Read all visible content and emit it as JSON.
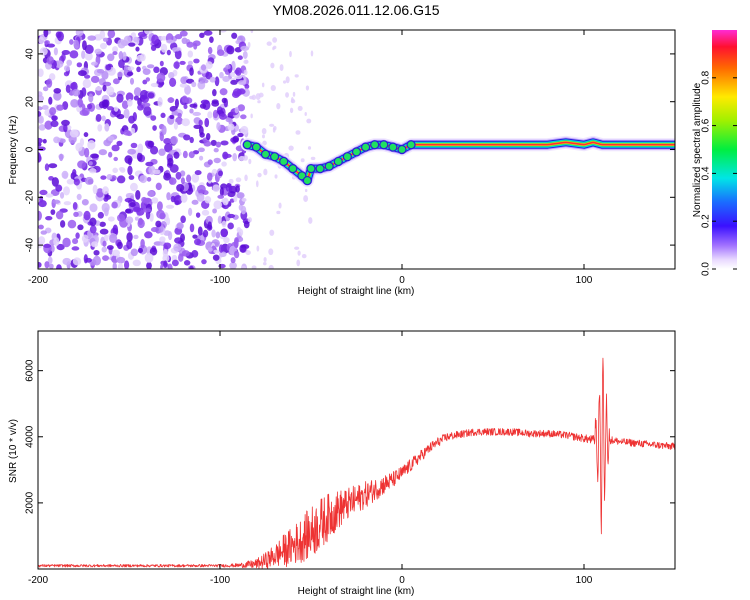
{
  "title": "YM08.2026.011.12.06.G15",
  "colors": {
    "trace": "#ee3333",
    "axis": "#000000",
    "scatter": "#6a1be0",
    "track_core": "#ff2a3a"
  },
  "chart_data": [
    {
      "id": "spectrogram",
      "type": "heatmap",
      "xlabel": "Height of straight line (km)",
      "ylabel": "Frequency (Hz)",
      "xlim": [
        -200,
        150
      ],
      "ylim": [
        -50,
        50
      ],
      "xticks": [
        -200,
        -100,
        0,
        100
      ],
      "yticks": [
        -40,
        -20,
        0,
        20,
        40
      ],
      "track": [
        [
          -85,
          2
        ],
        [
          -80,
          1
        ],
        [
          -75,
          -2
        ],
        [
          -70,
          -3
        ],
        [
          -65,
          -5
        ],
        [
          -60,
          -8
        ],
        [
          -55,
          -11
        ],
        [
          -52,
          -13
        ],
        [
          -50,
          -8
        ],
        [
          -45,
          -8
        ],
        [
          -40,
          -7
        ],
        [
          -35,
          -5
        ],
        [
          -30,
          -3
        ],
        [
          -25,
          -1
        ],
        [
          -20,
          1
        ],
        [
          -15,
          2
        ],
        [
          -10,
          2
        ],
        [
          -5,
          1
        ],
        [
          0,
          0
        ],
        [
          5,
          2
        ],
        [
          10,
          2
        ],
        [
          20,
          2
        ],
        [
          40,
          2
        ],
        [
          60,
          2
        ],
        [
          80,
          2
        ],
        [
          90,
          3
        ],
        [
          100,
          2
        ],
        [
          105,
          3
        ],
        [
          110,
          2
        ],
        [
          130,
          2
        ],
        [
          150,
          2
        ]
      ],
      "noise_region": [
        -200,
        -85
      ],
      "colorbar": {
        "label": "Normalized spectral amplitude",
        "ticks": [
          0.0,
          0.2,
          0.4,
          0.6,
          0.8
        ],
        "tick_labels": [
          "0.0",
          "0.2",
          "0.4",
          "0.6",
          "0.8"
        ],
        "range": [
          0,
          1
        ]
      }
    },
    {
      "id": "snr",
      "type": "line",
      "xlabel": "Height of straight line (km)",
      "ylabel": "SNR (10 * v/v)",
      "xlim": [
        -200,
        150
      ],
      "ylim": [
        0,
        7200
      ],
      "xticks": [
        -200,
        -100,
        0,
        100
      ],
      "yticks": [
        2000,
        4000,
        6000
      ],
      "series": [
        {
          "name": "SNR",
          "x": [
            -200,
            -180,
            -160,
            -140,
            -120,
            -100,
            -90,
            -80,
            -75,
            -70,
            -65,
            -60,
            -55,
            -50,
            -45,
            -40,
            -35,
            -30,
            -25,
            -20,
            -15,
            -10,
            -5,
            0,
            5,
            10,
            15,
            20,
            25,
            30,
            35,
            40,
            45,
            50,
            60,
            70,
            80,
            90,
            100,
            105,
            108,
            110,
            112,
            115,
            120,
            130,
            140,
            150
          ],
          "y": [
            100,
            100,
            100,
            100,
            100,
            100,
            110,
            150,
            250,
            400,
            550,
            700,
            900,
            1100,
            1350,
            1600,
            1800,
            1950,
            2100,
            2250,
            2400,
            2550,
            2700,
            2900,
            3150,
            3400,
            3650,
            3850,
            4000,
            4050,
            4100,
            4150,
            4150,
            4150,
            4150,
            4100,
            4100,
            4050,
            3950,
            3900,
            3850,
            3800,
            3950,
            3900,
            3850,
            3800,
            3750,
            3700
          ],
          "noise": [
            40,
            40,
            40,
            40,
            40,
            40,
            60,
            150,
            250,
            350,
            500,
            600,
            700,
            800,
            800,
            700,
            600,
            500,
            450,
            400,
            350,
            300,
            250,
            220,
            200,
            180,
            160,
            150,
            130,
            120,
            110,
            110,
            110,
            110,
            110,
            110,
            110,
            110,
            120,
            150,
            200,
            200,
            150,
            120,
            110,
            110,
            110,
            110
          ]
        }
      ]
    }
  ]
}
